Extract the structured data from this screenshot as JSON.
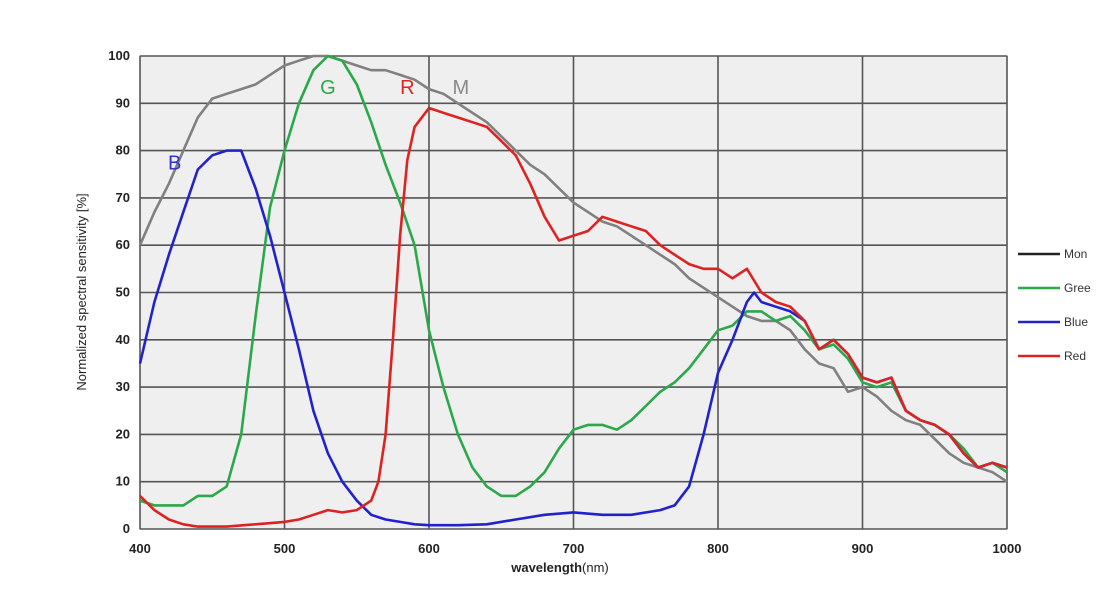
{
  "chart_data": {
    "type": "line",
    "xlabel_bold": "wavelength",
    "xlabel_rest": "(nm)",
    "ylabel": "Normalized spectral sensitivity [%]",
    "xlim": [
      400,
      1000
    ],
    "ylim": [
      0,
      100
    ],
    "x_ticks": [
      "400",
      "500",
      "600",
      "700",
      "800",
      "900",
      "1000"
    ],
    "y_ticks": [
      "0",
      "10",
      "20",
      "30",
      "40",
      "50",
      "60",
      "70",
      "80",
      "90",
      "100"
    ],
    "grid": true,
    "legend_position": "right",
    "annotations": [
      {
        "text": "B",
        "series": "Blue",
        "x": 424,
        "y": 76,
        "color": "#3333cc"
      },
      {
        "text": "G",
        "series": "Green",
        "x": 530,
        "y": 92,
        "color": "#2aa84a"
      },
      {
        "text": "R",
        "series": "Red",
        "x": 585,
        "y": 92,
        "color": "#dd2222"
      },
      {
        "text": "M",
        "series": "Mono",
        "x": 622,
        "y": 92,
        "color": "#888888"
      }
    ],
    "series": [
      {
        "name": "Mono",
        "legend_label": "Mon",
        "color": "#808080",
        "points": [
          [
            400,
            60
          ],
          [
            410,
            67
          ],
          [
            420,
            73
          ],
          [
            430,
            80
          ],
          [
            440,
            87
          ],
          [
            450,
            91
          ],
          [
            460,
            92
          ],
          [
            470,
            93
          ],
          [
            480,
            94
          ],
          [
            490,
            96
          ],
          [
            500,
            98
          ],
          [
            510,
            99
          ],
          [
            520,
            100
          ],
          [
            530,
            100
          ],
          [
            540,
            99
          ],
          [
            550,
            98
          ],
          [
            560,
            97
          ],
          [
            570,
            97
          ],
          [
            580,
            96
          ],
          [
            590,
            95
          ],
          [
            600,
            93
          ],
          [
            610,
            92
          ],
          [
            620,
            90
          ],
          [
            630,
            88
          ],
          [
            640,
            86
          ],
          [
            650,
            83
          ],
          [
            660,
            80
          ],
          [
            670,
            77
          ],
          [
            680,
            75
          ],
          [
            690,
            72
          ],
          [
            700,
            69
          ],
          [
            710,
            67
          ],
          [
            720,
            65
          ],
          [
            730,
            64
          ],
          [
            740,
            62
          ],
          [
            750,
            60
          ],
          [
            760,
            58
          ],
          [
            770,
            56
          ],
          [
            780,
            53
          ],
          [
            790,
            51
          ],
          [
            800,
            49
          ],
          [
            810,
            47
          ],
          [
            820,
            45
          ],
          [
            830,
            44
          ],
          [
            840,
            44
          ],
          [
            850,
            42
          ],
          [
            860,
            38
          ],
          [
            870,
            35
          ],
          [
            880,
            34
          ],
          [
            890,
            29
          ],
          [
            900,
            30
          ],
          [
            910,
            28
          ],
          [
            920,
            25
          ],
          [
            930,
            23
          ],
          [
            940,
            22
          ],
          [
            950,
            19
          ],
          [
            960,
            16
          ],
          [
            970,
            14
          ],
          [
            980,
            13
          ],
          [
            990,
            12
          ],
          [
            1000,
            10
          ]
        ]
      },
      {
        "name": "Green",
        "legend_label": "Gree",
        "color": "#2aa84a",
        "points": [
          [
            400,
            6
          ],
          [
            410,
            5
          ],
          [
            420,
            5
          ],
          [
            430,
            5
          ],
          [
            440,
            7
          ],
          [
            450,
            7
          ],
          [
            460,
            9
          ],
          [
            470,
            20
          ],
          [
            480,
            45
          ],
          [
            490,
            68
          ],
          [
            500,
            80
          ],
          [
            510,
            90
          ],
          [
            520,
            97
          ],
          [
            530,
            100
          ],
          [
            540,
            99
          ],
          [
            550,
            94
          ],
          [
            560,
            86
          ],
          [
            570,
            77
          ],
          [
            580,
            69
          ],
          [
            590,
            60
          ],
          [
            600,
            42
          ],
          [
            610,
            30
          ],
          [
            620,
            20
          ],
          [
            630,
            13
          ],
          [
            640,
            9
          ],
          [
            650,
            7
          ],
          [
            660,
            7
          ],
          [
            670,
            9
          ],
          [
            680,
            12
          ],
          [
            690,
            17
          ],
          [
            700,
            21
          ],
          [
            710,
            22
          ],
          [
            720,
            22
          ],
          [
            730,
            21
          ],
          [
            740,
            23
          ],
          [
            750,
            26
          ],
          [
            760,
            29
          ],
          [
            770,
            31
          ],
          [
            780,
            34
          ],
          [
            790,
            38
          ],
          [
            800,
            42
          ],
          [
            810,
            43
          ],
          [
            820,
            46
          ],
          [
            830,
            46
          ],
          [
            840,
            44
          ],
          [
            850,
            45
          ],
          [
            860,
            42
          ],
          [
            870,
            38
          ],
          [
            880,
            39
          ],
          [
            890,
            36
          ],
          [
            900,
            31
          ],
          [
            910,
            30
          ],
          [
            920,
            31
          ],
          [
            930,
            25
          ],
          [
            940,
            23
          ],
          [
            950,
            22
          ],
          [
            960,
            20
          ],
          [
            970,
            17
          ],
          [
            980,
            13
          ],
          [
            990,
            14
          ],
          [
            1000,
            12
          ]
        ]
      },
      {
        "name": "Blue",
        "legend_label": "Blue",
        "color": "#2222cc",
        "points": [
          [
            400,
            35
          ],
          [
            410,
            48
          ],
          [
            420,
            58
          ],
          [
            430,
            67
          ],
          [
            440,
            76
          ],
          [
            450,
            79
          ],
          [
            460,
            80
          ],
          [
            470,
            80
          ],
          [
            480,
            72
          ],
          [
            490,
            62
          ],
          [
            500,
            50
          ],
          [
            510,
            38
          ],
          [
            520,
            25
          ],
          [
            530,
            16
          ],
          [
            540,
            10
          ],
          [
            550,
            6
          ],
          [
            560,
            3
          ],
          [
            570,
            2
          ],
          [
            580,
            1.5
          ],
          [
            590,
            1
          ],
          [
            600,
            0.8
          ],
          [
            620,
            0.8
          ],
          [
            640,
            1
          ],
          [
            660,
            2
          ],
          [
            680,
            3
          ],
          [
            700,
            3.5
          ],
          [
            720,
            3
          ],
          [
            740,
            3
          ],
          [
            760,
            4
          ],
          [
            770,
            5
          ],
          [
            780,
            9
          ],
          [
            790,
            20
          ],
          [
            800,
            33
          ],
          [
            810,
            40
          ],
          [
            820,
            48
          ],
          [
            825,
            50
          ],
          [
            830,
            48
          ],
          [
            840,
            47
          ],
          [
            850,
            46
          ],
          [
            860,
            44
          ],
          [
            870,
            38
          ],
          [
            880,
            40
          ],
          [
            890,
            37
          ],
          [
            900,
            32
          ],
          [
            910,
            31
          ],
          [
            920,
            32
          ],
          [
            930,
            25
          ],
          [
            940,
            23
          ],
          [
            950,
            22
          ],
          [
            960,
            20
          ],
          [
            970,
            16
          ],
          [
            980,
            13
          ],
          [
            990,
            14
          ],
          [
            1000,
            13
          ]
        ]
      },
      {
        "name": "Red",
        "legend_label": "Red",
        "color": "#dd2222",
        "points": [
          [
            400,
            7
          ],
          [
            410,
            4
          ],
          [
            420,
            2
          ],
          [
            430,
            1
          ],
          [
            440,
            0.5
          ],
          [
            460,
            0.5
          ],
          [
            480,
            1
          ],
          [
            500,
            1.5
          ],
          [
            510,
            2
          ],
          [
            520,
            3
          ],
          [
            530,
            4
          ],
          [
            540,
            3.5
          ],
          [
            550,
            4
          ],
          [
            560,
            6
          ],
          [
            565,
            10
          ],
          [
            570,
            20
          ],
          [
            575,
            40
          ],
          [
            580,
            62
          ],
          [
            585,
            78
          ],
          [
            590,
            85
          ],
          [
            600,
            89
          ],
          [
            610,
            88
          ],
          [
            620,
            87
          ],
          [
            630,
            86
          ],
          [
            640,
            85
          ],
          [
            650,
            82
          ],
          [
            660,
            79
          ],
          [
            670,
            73
          ],
          [
            680,
            66
          ],
          [
            690,
            61
          ],
          [
            700,
            62
          ],
          [
            710,
            63
          ],
          [
            720,
            66
          ],
          [
            730,
            65
          ],
          [
            740,
            64
          ],
          [
            750,
            63
          ],
          [
            760,
            60
          ],
          [
            770,
            58
          ],
          [
            780,
            56
          ],
          [
            790,
            55
          ],
          [
            800,
            55
          ],
          [
            810,
            53
          ],
          [
            820,
            55
          ],
          [
            830,
            50
          ],
          [
            840,
            48
          ],
          [
            850,
            47
          ],
          [
            860,
            44
          ],
          [
            870,
            38
          ],
          [
            880,
            40
          ],
          [
            890,
            37
          ],
          [
            900,
            32
          ],
          [
            910,
            31
          ],
          [
            920,
            32
          ],
          [
            930,
            25
          ],
          [
            940,
            23
          ],
          [
            950,
            22
          ],
          [
            960,
            20
          ],
          [
            970,
            16
          ],
          [
            980,
            13
          ],
          [
            990,
            14
          ],
          [
            1000,
            13
          ]
        ]
      }
    ]
  }
}
